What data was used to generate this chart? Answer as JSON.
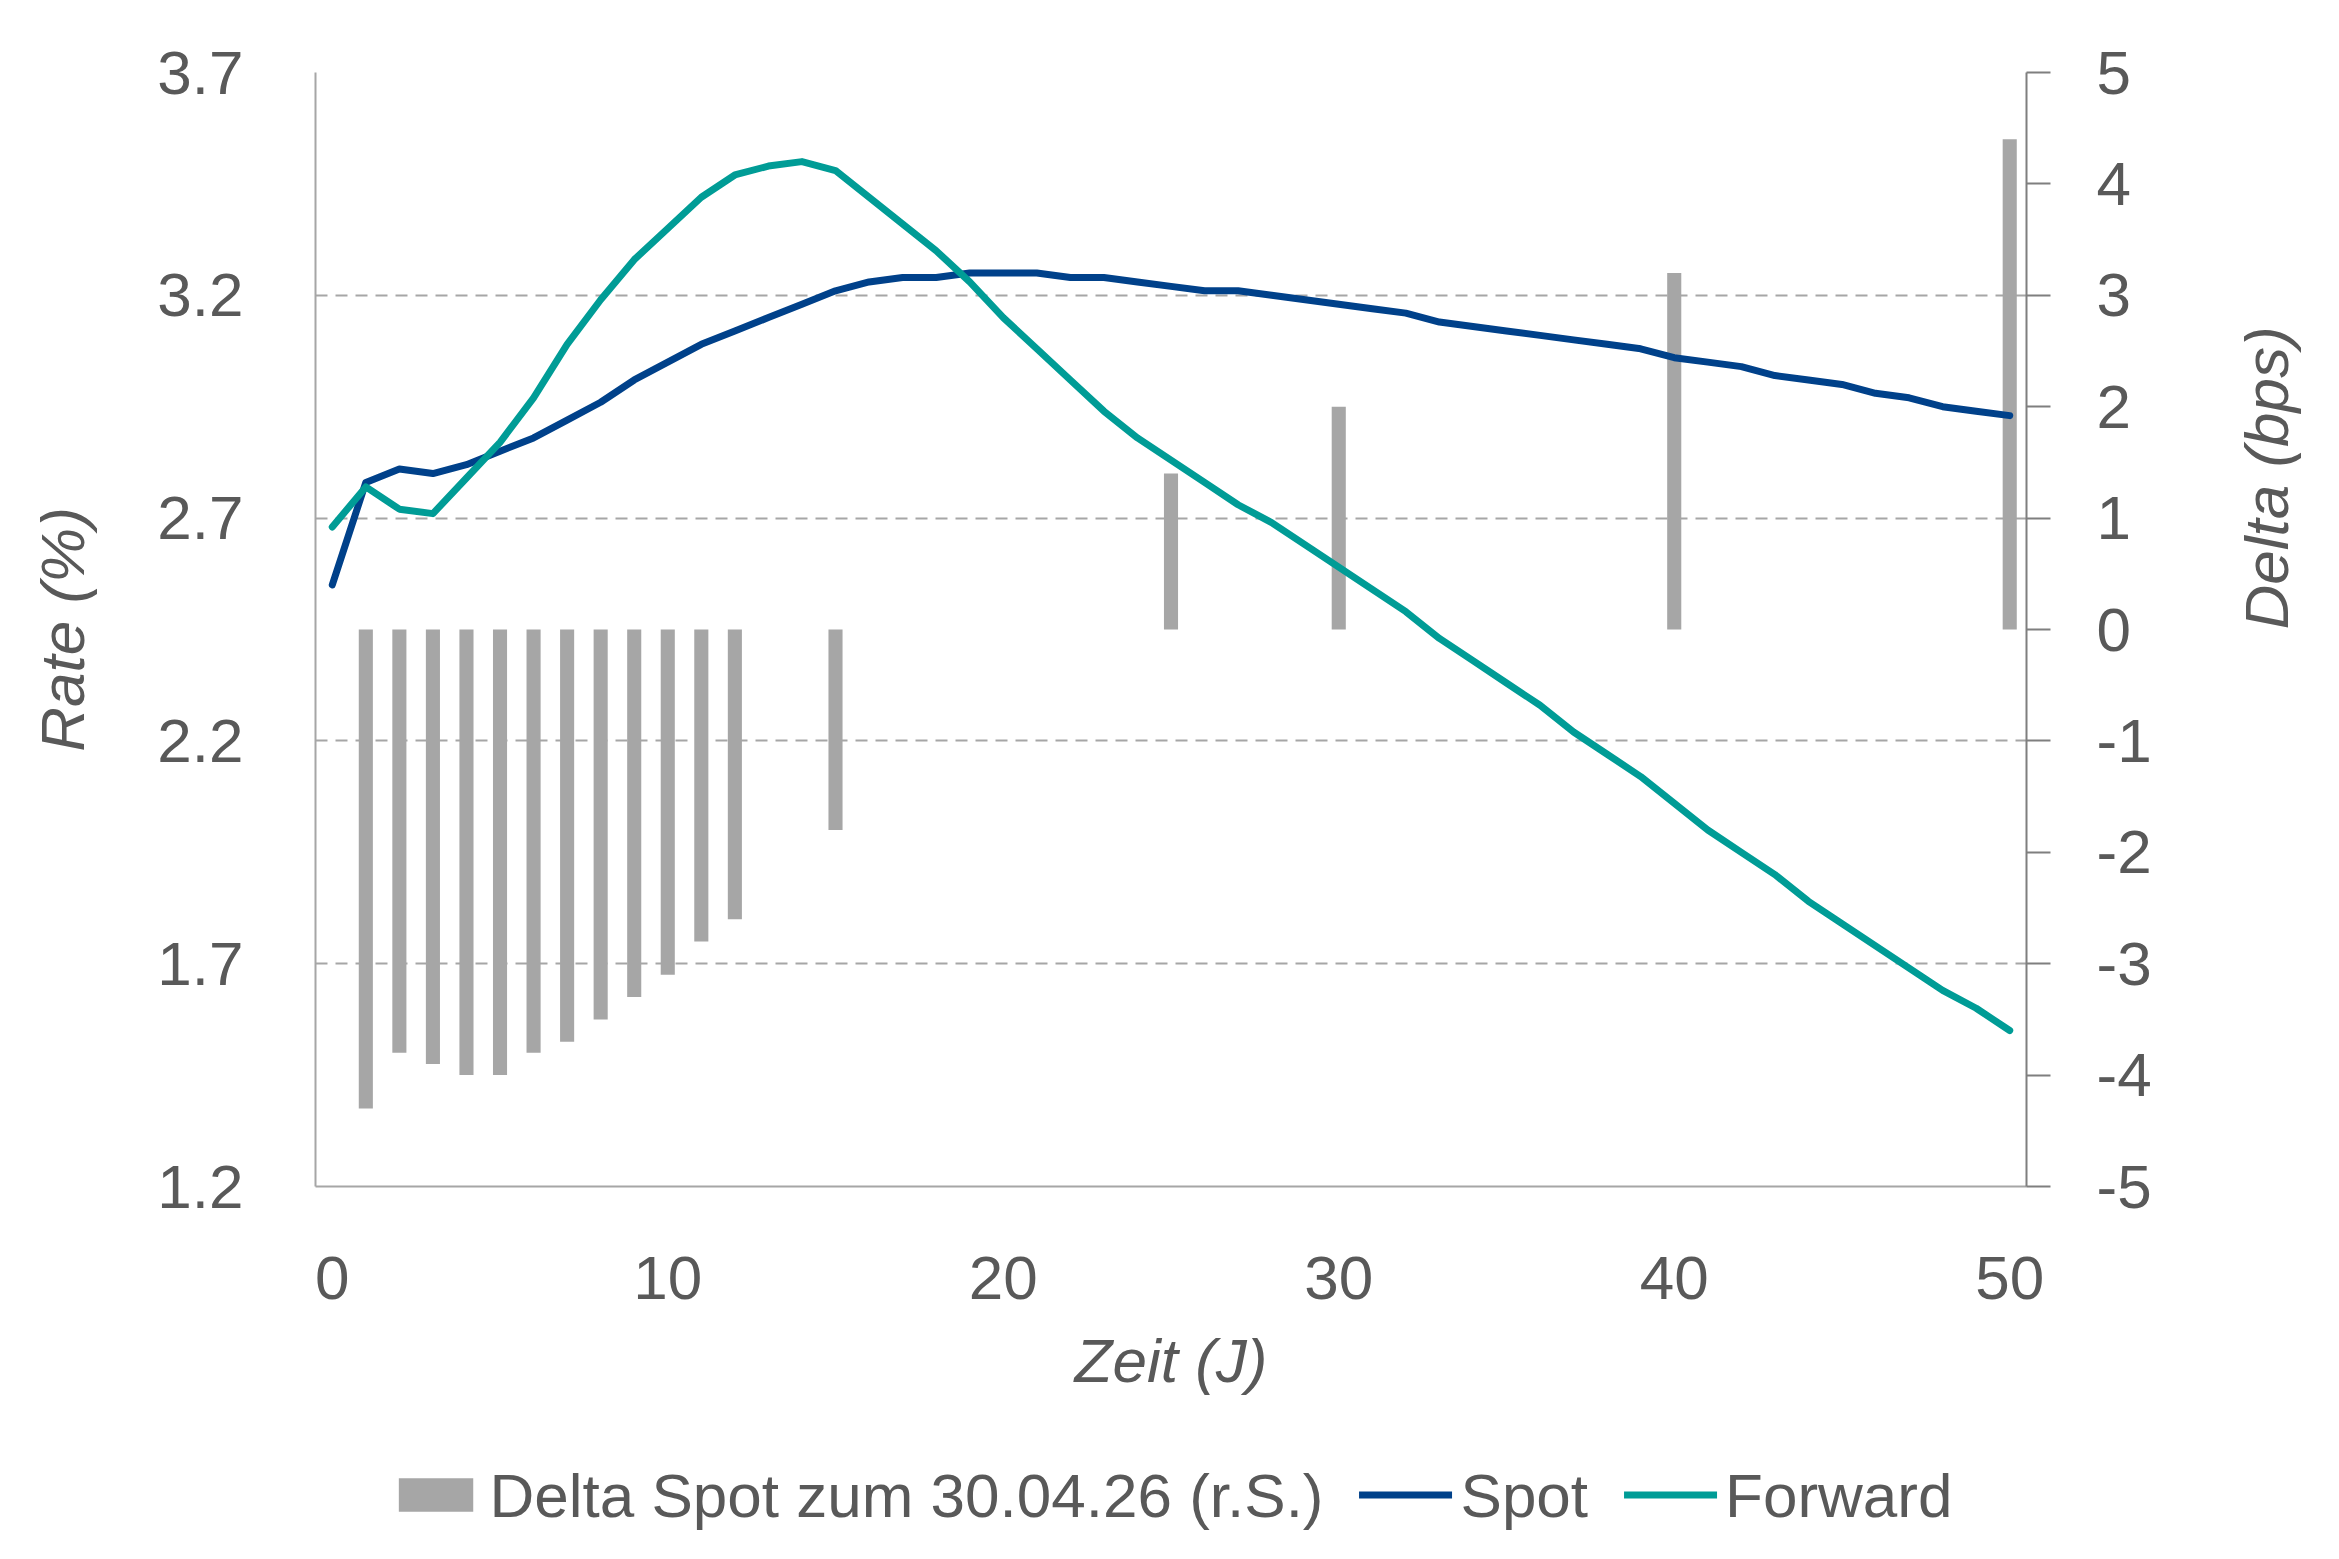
{
  "chart_data": {
    "type": "line",
    "xlabel": "Zeit (J)",
    "ylabel": "Rate (%)",
    "y2label": "Delta (bps)",
    "x": [
      0,
      1,
      2,
      3,
      4,
      5,
      6,
      7,
      8,
      9,
      10,
      11,
      12,
      13,
      14,
      15,
      16,
      17,
      18,
      19,
      20,
      21,
      22,
      23,
      24,
      25,
      26,
      27,
      28,
      29,
      30,
      31,
      32,
      33,
      34,
      35,
      36,
      37,
      38,
      39,
      40,
      41,
      42,
      43,
      44,
      45,
      46,
      47,
      48,
      49,
      50
    ],
    "xlim": [
      -0.5,
      50.5
    ],
    "xticks": [
      0,
      10,
      20,
      30,
      40,
      50
    ],
    "ylim": [
      1.2,
      3.7
    ],
    "yticks": [
      1.2,
      1.7,
      2.2,
      2.7,
      3.2,
      3.7
    ],
    "y2lim": [
      -5,
      5
    ],
    "y2ticks": [
      -5,
      -4,
      -3,
      -2,
      -1,
      0,
      1,
      2,
      3,
      4,
      5
    ],
    "grid": "y",
    "legend": "bottom",
    "line_style": "solid",
    "series": [
      {
        "name": "Delta Spot zum 30.04.26 (r.S.)",
        "type": "bar",
        "axis": "y2",
        "color": "#a6a6a6",
        "x": [
          1,
          2,
          3,
          4,
          5,
          6,
          7,
          8,
          9,
          10,
          11,
          12,
          15,
          25,
          30,
          40,
          50
        ],
        "values": [
          -4.3,
          -3.8,
          -3.9,
          -4.0,
          -4.0,
          -3.8,
          -3.7,
          -3.5,
          -3.3,
          -3.1,
          -2.8,
          -2.6,
          -1.8,
          1.4,
          2.0,
          3.2,
          4.4
        ]
      },
      {
        "name": "Spot",
        "color": "#00418a",
        "values": [
          2.55,
          2.78,
          2.81,
          2.8,
          2.82,
          2.85,
          2.88,
          2.92,
          2.96,
          3.01,
          3.05,
          3.09,
          3.12,
          3.15,
          3.18,
          3.21,
          3.23,
          3.24,
          3.24,
          3.25,
          3.25,
          3.25,
          3.24,
          3.24,
          3.23,
          3.22,
          3.21,
          3.21,
          3.2,
          3.19,
          3.18,
          3.17,
          3.16,
          3.14,
          3.13,
          3.12,
          3.11,
          3.1,
          3.09,
          3.08,
          3.06,
          3.05,
          3.04,
          3.02,
          3.01,
          3.0,
          2.98,
          2.97,
          2.95,
          2.94,
          2.93
        ]
      },
      {
        "name": "Forward",
        "color": "#009c96",
        "values": [
          2.68,
          2.77,
          2.72,
          2.71,
          2.79,
          2.87,
          2.97,
          3.09,
          3.19,
          3.28,
          3.35,
          3.42,
          3.47,
          3.49,
          3.5,
          3.48,
          3.42,
          3.36,
          3.3,
          3.23,
          3.15,
          3.08,
          3.01,
          2.94,
          2.88,
          2.83,
          2.78,
          2.73,
          2.69,
          2.64,
          2.59,
          2.54,
          2.49,
          2.43,
          2.38,
          2.33,
          2.28,
          2.22,
          2.17,
          2.12,
          2.06,
          2.0,
          1.95,
          1.9,
          1.84,
          1.79,
          1.74,
          1.69,
          1.64,
          1.6,
          1.55
        ]
      }
    ]
  }
}
